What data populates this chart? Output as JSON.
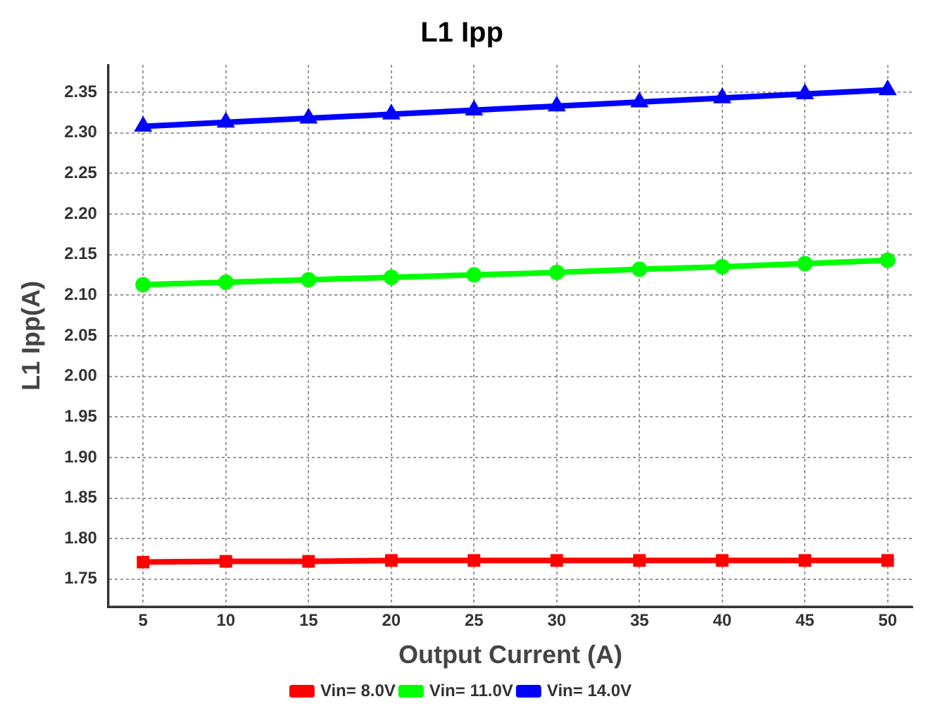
{
  "chart_data": {
    "type": "line",
    "title": "L1 Ipp",
    "xlabel": "Output Current (A)",
    "ylabel": "L1 Ipp(A)",
    "x": [
      5,
      10,
      15,
      20,
      25,
      30,
      35,
      40,
      45,
      50
    ],
    "xlim": [
      2.9,
      51.5
    ],
    "xticks": [
      5,
      10,
      15,
      20,
      25,
      30,
      35,
      40,
      45,
      50
    ],
    "ylim": [
      1.716,
      2.384
    ],
    "yticks": [
      1.75,
      {
        "value": 1.8,
        "label": "1.80"
      },
      1.85,
      {
        "value": 1.9,
        "label": "1.90"
      },
      1.95,
      {
        "value": 2.0,
        "label": "2.00"
      },
      2.05,
      {
        "value": 2.1,
        "label": "2.10"
      },
      2.15,
      {
        "value": 2.2,
        "label": "2.20"
      },
      2.25,
      {
        "value": 2.3,
        "label": "2.30"
      },
      2.35
    ],
    "grid": true,
    "legend": "bottom",
    "series": [
      {
        "name": "Vin= 8.0V",
        "color": "#ff0000",
        "marker": "square",
        "values": [
          1.771,
          1.772,
          1.772,
          1.773,
          1.773,
          1.773,
          1.773,
          1.773,
          1.773,
          1.773
        ]
      },
      {
        "name": "Vin= 11.0V",
        "color": "#00ff00",
        "marker": "circle",
        "values": [
          2.113,
          2.116,
          2.119,
          2.122,
          2.125,
          2.128,
          2.132,
          2.135,
          2.139,
          2.143
        ]
      },
      {
        "name": "Vin= 14.0V",
        "color": "#0000ff",
        "marker": "triangle",
        "values": [
          2.308,
          2.313,
          2.318,
          2.323,
          2.328,
          2.333,
          2.338,
          2.343,
          2.348,
          2.353
        ]
      }
    ]
  }
}
